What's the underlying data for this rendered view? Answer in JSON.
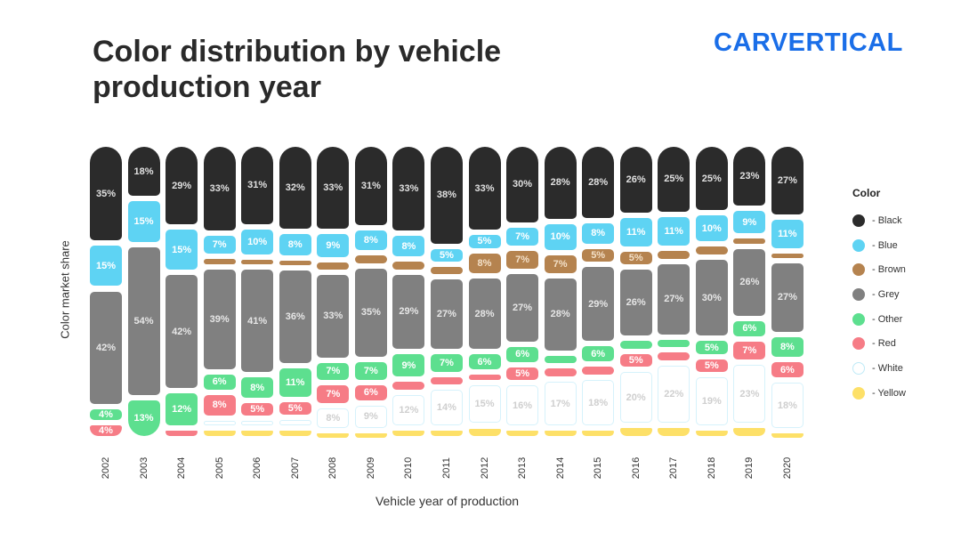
{
  "title": "Color distribution by vehicle production year",
  "logo": "CARVERTICAL",
  "chart_data": {
    "type": "bar",
    "stacked": true,
    "title": "Color distribution by vehicle production year",
    "xlabel": "Vehicle year of production",
    "ylabel": "Color market share",
    "legend_title": "Color",
    "legend_position": "right",
    "categories": [
      "2002",
      "2003",
      "2004",
      "2005",
      "2006",
      "2007",
      "2008",
      "2009",
      "2010",
      "2011",
      "2012",
      "2013",
      "2014",
      "2015",
      "2016",
      "2017",
      "2018",
      "2019",
      "2020"
    ],
    "series": [
      {
        "name": "Black",
        "color": "#2b2b2b",
        "label_color": "#e0e0e0",
        "values": [
          35,
          18,
          29,
          33,
          31,
          32,
          33,
          31,
          33,
          38,
          33,
          30,
          28,
          28,
          26,
          25,
          25,
          23,
          27
        ]
      },
      {
        "name": "Blue",
        "color": "#5ed3f3",
        "label_color": "#ffffff",
        "values": [
          15,
          15,
          15,
          7,
          10,
          8,
          9,
          8,
          8,
          5,
          5,
          7,
          10,
          8,
          11,
          11,
          10,
          9,
          11
        ]
      },
      {
        "name": "Brown",
        "color": "#b5834f",
        "label_color": "#f3e0c8",
        "values": [
          0,
          0,
          0,
          2,
          2,
          2,
          3,
          3,
          3,
          3,
          8,
          7,
          7,
          5,
          5,
          3,
          3,
          2,
          2
        ]
      },
      {
        "name": "Grey",
        "color": "#808080",
        "label_color": "#e6e6e6",
        "values": [
          42,
          54,
          42,
          39,
          41,
          36,
          33,
          35,
          29,
          27,
          28,
          27,
          28,
          29,
          26,
          27,
          30,
          26,
          27
        ]
      },
      {
        "name": "Other",
        "color": "#5ddf8f",
        "label_color": "#ffffff",
        "values": [
          4,
          13,
          12,
          6,
          8,
          11,
          7,
          7,
          9,
          7,
          6,
          6,
          3,
          6,
          3,
          3,
          5,
          6,
          8
        ]
      },
      {
        "name": "Red",
        "color": "#f67c86",
        "label_color": "#ffffff",
        "values": [
          4,
          0,
          2,
          8,
          5,
          5,
          7,
          6,
          3,
          3,
          2,
          5,
          3,
          3,
          5,
          3,
          5,
          7,
          6
        ]
      },
      {
        "name": "White",
        "color": "#ffffff",
        "label_color": "#cfcfcf",
        "values": [
          0,
          0,
          0,
          2,
          2,
          2,
          8,
          9,
          12,
          14,
          15,
          16,
          17,
          18,
          20,
          22,
          19,
          23,
          18
        ]
      },
      {
        "name": "Yellow",
        "color": "#fde068",
        "label_color": "#ffffff",
        "values": [
          0,
          0,
          0,
          2,
          2,
          2,
          1,
          1,
          2,
          2,
          3,
          2,
          2,
          2,
          3,
          3,
          2,
          3,
          1
        ]
      }
    ]
  }
}
